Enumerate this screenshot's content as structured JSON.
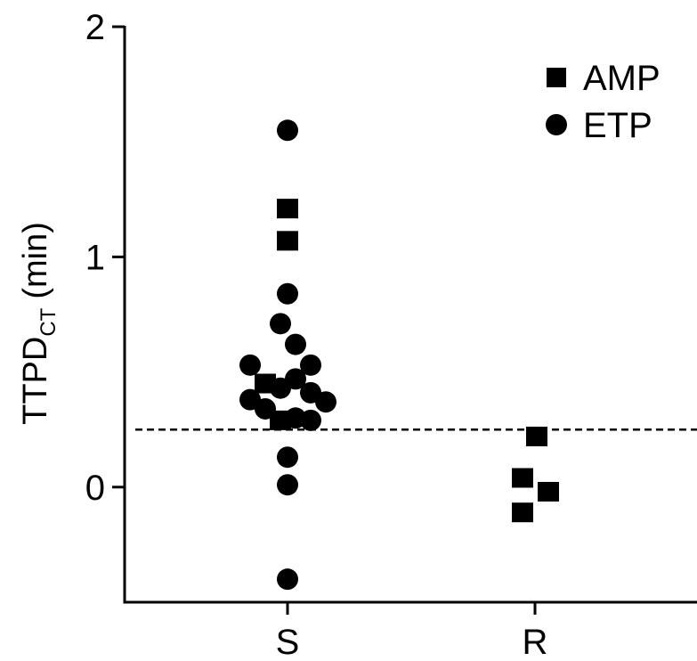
{
  "chart_data": {
    "type": "scatter",
    "ylabel": "TTPD",
    "ylabel_subscript": "CT",
    "ylabel_unit": "(min)",
    "ylim": [
      -0.5,
      2
    ],
    "yticks": [
      "0",
      "1",
      "2"
    ],
    "categories": [
      "S",
      "R"
    ],
    "threshold": 0.25,
    "legend": {
      "position": "top-right"
    },
    "colors": {
      "marker": "#000000",
      "axis": "#000000"
    },
    "series": [
      {
        "name": "AMP",
        "marker": "square",
        "points": [
          {
            "category": "S",
            "offset": 0.0,
            "y": 1.21
          },
          {
            "category": "S",
            "offset": 0.0,
            "y": 1.07
          },
          {
            "category": "S",
            "offset": -0.25,
            "y": 0.45
          },
          {
            "category": "S",
            "offset": -0.08,
            "y": 0.29
          },
          {
            "category": "R",
            "offset": -0.14,
            "y": 0.04
          },
          {
            "category": "R",
            "offset": -0.14,
            "y": -0.11
          },
          {
            "category": "R",
            "offset": 0.02,
            "y": 0.22
          },
          {
            "category": "R",
            "offset": 0.15,
            "y": -0.02
          }
        ]
      },
      {
        "name": "ETP",
        "marker": "circle",
        "points": [
          {
            "category": "S",
            "offset": 0.0,
            "y": 1.55
          },
          {
            "category": "S",
            "offset": 0.0,
            "y": 0.84
          },
          {
            "category": "S",
            "offset": -0.08,
            "y": 0.71
          },
          {
            "category": "S",
            "offset": 0.09,
            "y": 0.62
          },
          {
            "category": "S",
            "offset": -0.42,
            "y": 0.53
          },
          {
            "category": "S",
            "offset": 0.26,
            "y": 0.53
          },
          {
            "category": "S",
            "offset": 0.09,
            "y": 0.47
          },
          {
            "category": "S",
            "offset": -0.08,
            "y": 0.43
          },
          {
            "category": "S",
            "offset": 0.26,
            "y": 0.41
          },
          {
            "category": "S",
            "offset": -0.42,
            "y": 0.38
          },
          {
            "category": "S",
            "offset": 0.43,
            "y": 0.37
          },
          {
            "category": "S",
            "offset": -0.25,
            "y": 0.34
          },
          {
            "category": "S",
            "offset": 0.09,
            "y": 0.3
          },
          {
            "category": "S",
            "offset": 0.26,
            "y": 0.29
          },
          {
            "category": "S",
            "offset": 0.0,
            "y": 0.13
          },
          {
            "category": "S",
            "offset": 0.0,
            "y": 0.01
          },
          {
            "category": "S",
            "offset": 0.0,
            "y": -0.4
          }
        ]
      }
    ]
  }
}
